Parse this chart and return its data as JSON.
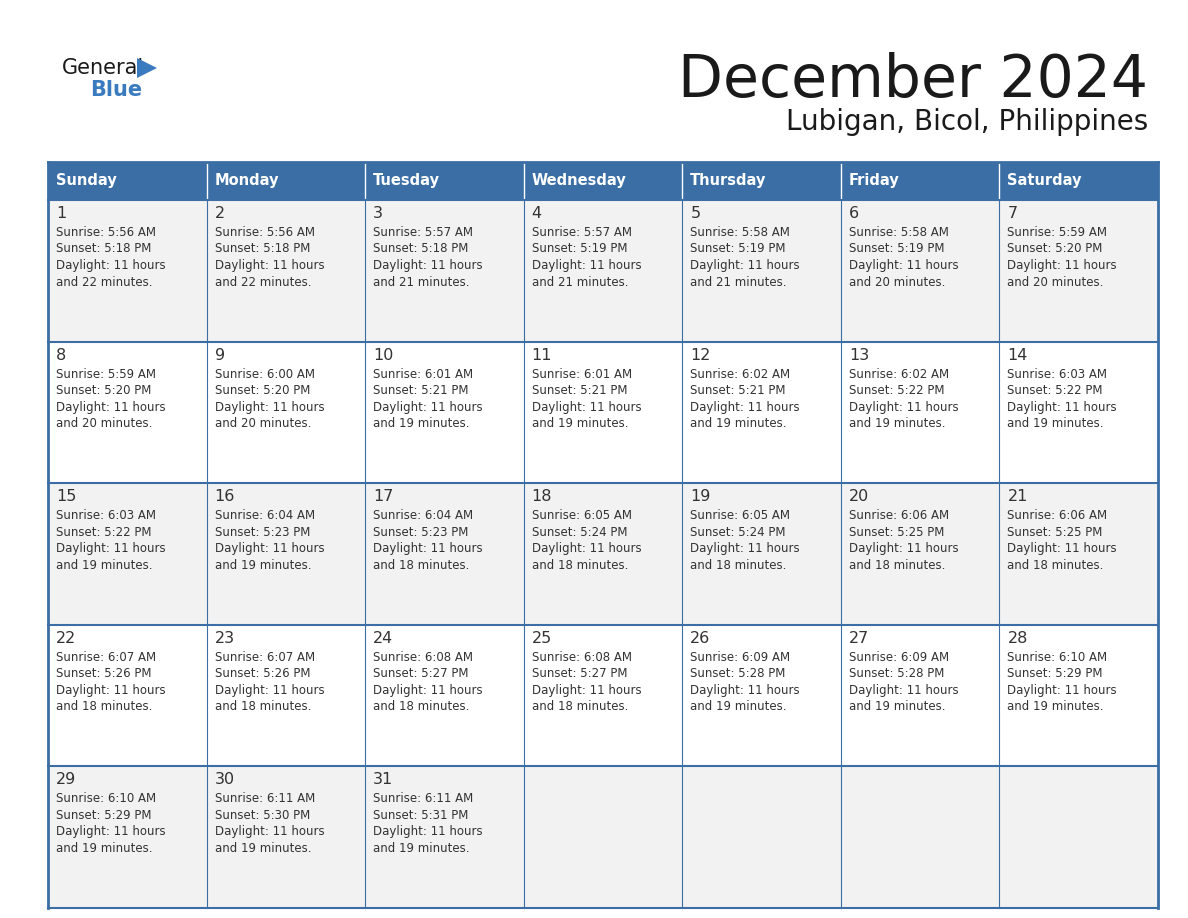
{
  "title": "December 2024",
  "subtitle": "Lubigan, Bicol, Philippines",
  "header_bg": "#3a6ea5",
  "header_text_color": "#ffffff",
  "row_bg_odd": "#f2f2f2",
  "row_bg_even": "#ffffff",
  "border_color": "#3a6ea5",
  "row_sep_color": "#3a6ea5",
  "text_color": "#333333",
  "days_of_week": [
    "Sunday",
    "Monday",
    "Tuesday",
    "Wednesday",
    "Thursday",
    "Friday",
    "Saturday"
  ],
  "calendar_data": [
    [
      {
        "day": "1",
        "sunrise": "5:56 AM",
        "sunset": "5:18 PM",
        "daylight": "11 hours",
        "daylight2": "and 22 minutes."
      },
      {
        "day": "2",
        "sunrise": "5:56 AM",
        "sunset": "5:18 PM",
        "daylight": "11 hours",
        "daylight2": "and 22 minutes."
      },
      {
        "day": "3",
        "sunrise": "5:57 AM",
        "sunset": "5:18 PM",
        "daylight": "11 hours",
        "daylight2": "and 21 minutes."
      },
      {
        "day": "4",
        "sunrise": "5:57 AM",
        "sunset": "5:19 PM",
        "daylight": "11 hours",
        "daylight2": "and 21 minutes."
      },
      {
        "day": "5",
        "sunrise": "5:58 AM",
        "sunset": "5:19 PM",
        "daylight": "11 hours",
        "daylight2": "and 21 minutes."
      },
      {
        "day": "6",
        "sunrise": "5:58 AM",
        "sunset": "5:19 PM",
        "daylight": "11 hours",
        "daylight2": "and 20 minutes."
      },
      {
        "day": "7",
        "sunrise": "5:59 AM",
        "sunset": "5:20 PM",
        "daylight": "11 hours",
        "daylight2": "and 20 minutes."
      }
    ],
    [
      {
        "day": "8",
        "sunrise": "5:59 AM",
        "sunset": "5:20 PM",
        "daylight": "11 hours",
        "daylight2": "and 20 minutes."
      },
      {
        "day": "9",
        "sunrise": "6:00 AM",
        "sunset": "5:20 PM",
        "daylight": "11 hours",
        "daylight2": "and 20 minutes."
      },
      {
        "day": "10",
        "sunrise": "6:01 AM",
        "sunset": "5:21 PM",
        "daylight": "11 hours",
        "daylight2": "and 19 minutes."
      },
      {
        "day": "11",
        "sunrise": "6:01 AM",
        "sunset": "5:21 PM",
        "daylight": "11 hours",
        "daylight2": "and 19 minutes."
      },
      {
        "day": "12",
        "sunrise": "6:02 AM",
        "sunset": "5:21 PM",
        "daylight": "11 hours",
        "daylight2": "and 19 minutes."
      },
      {
        "day": "13",
        "sunrise": "6:02 AM",
        "sunset": "5:22 PM",
        "daylight": "11 hours",
        "daylight2": "and 19 minutes."
      },
      {
        "day": "14",
        "sunrise": "6:03 AM",
        "sunset": "5:22 PM",
        "daylight": "11 hours",
        "daylight2": "and 19 minutes."
      }
    ],
    [
      {
        "day": "15",
        "sunrise": "6:03 AM",
        "sunset": "5:22 PM",
        "daylight": "11 hours",
        "daylight2": "and 19 minutes."
      },
      {
        "day": "16",
        "sunrise": "6:04 AM",
        "sunset": "5:23 PM",
        "daylight": "11 hours",
        "daylight2": "and 19 minutes."
      },
      {
        "day": "17",
        "sunrise": "6:04 AM",
        "sunset": "5:23 PM",
        "daylight": "11 hours",
        "daylight2": "and 18 minutes."
      },
      {
        "day": "18",
        "sunrise": "6:05 AM",
        "sunset": "5:24 PM",
        "daylight": "11 hours",
        "daylight2": "and 18 minutes."
      },
      {
        "day": "19",
        "sunrise": "6:05 AM",
        "sunset": "5:24 PM",
        "daylight": "11 hours",
        "daylight2": "and 18 minutes."
      },
      {
        "day": "20",
        "sunrise": "6:06 AM",
        "sunset": "5:25 PM",
        "daylight": "11 hours",
        "daylight2": "and 18 minutes."
      },
      {
        "day": "21",
        "sunrise": "6:06 AM",
        "sunset": "5:25 PM",
        "daylight": "11 hours",
        "daylight2": "and 18 minutes."
      }
    ],
    [
      {
        "day": "22",
        "sunrise": "6:07 AM",
        "sunset": "5:26 PM",
        "daylight": "11 hours",
        "daylight2": "and 18 minutes."
      },
      {
        "day": "23",
        "sunrise": "6:07 AM",
        "sunset": "5:26 PM",
        "daylight": "11 hours",
        "daylight2": "and 18 minutes."
      },
      {
        "day": "24",
        "sunrise": "6:08 AM",
        "sunset": "5:27 PM",
        "daylight": "11 hours",
        "daylight2": "and 18 minutes."
      },
      {
        "day": "25",
        "sunrise": "6:08 AM",
        "sunset": "5:27 PM",
        "daylight": "11 hours",
        "daylight2": "and 18 minutes."
      },
      {
        "day": "26",
        "sunrise": "6:09 AM",
        "sunset": "5:28 PM",
        "daylight": "11 hours",
        "daylight2": "and 19 minutes."
      },
      {
        "day": "27",
        "sunrise": "6:09 AM",
        "sunset": "5:28 PM",
        "daylight": "11 hours",
        "daylight2": "and 19 minutes."
      },
      {
        "day": "28",
        "sunrise": "6:10 AM",
        "sunset": "5:29 PM",
        "daylight": "11 hours",
        "daylight2": "and 19 minutes."
      }
    ],
    [
      {
        "day": "29",
        "sunrise": "6:10 AM",
        "sunset": "5:29 PM",
        "daylight": "11 hours",
        "daylight2": "and 19 minutes."
      },
      {
        "day": "30",
        "sunrise": "6:11 AM",
        "sunset": "5:30 PM",
        "daylight": "11 hours",
        "daylight2": "and 19 minutes."
      },
      {
        "day": "31",
        "sunrise": "6:11 AM",
        "sunset": "5:31 PM",
        "daylight": "11 hours",
        "daylight2": "and 19 minutes."
      },
      null,
      null,
      null,
      null
    ]
  ],
  "logo_general_color": "#1a1a1a",
  "logo_blue_color": "#3a7abf",
  "logo_triangle_color": "#3a7abf"
}
